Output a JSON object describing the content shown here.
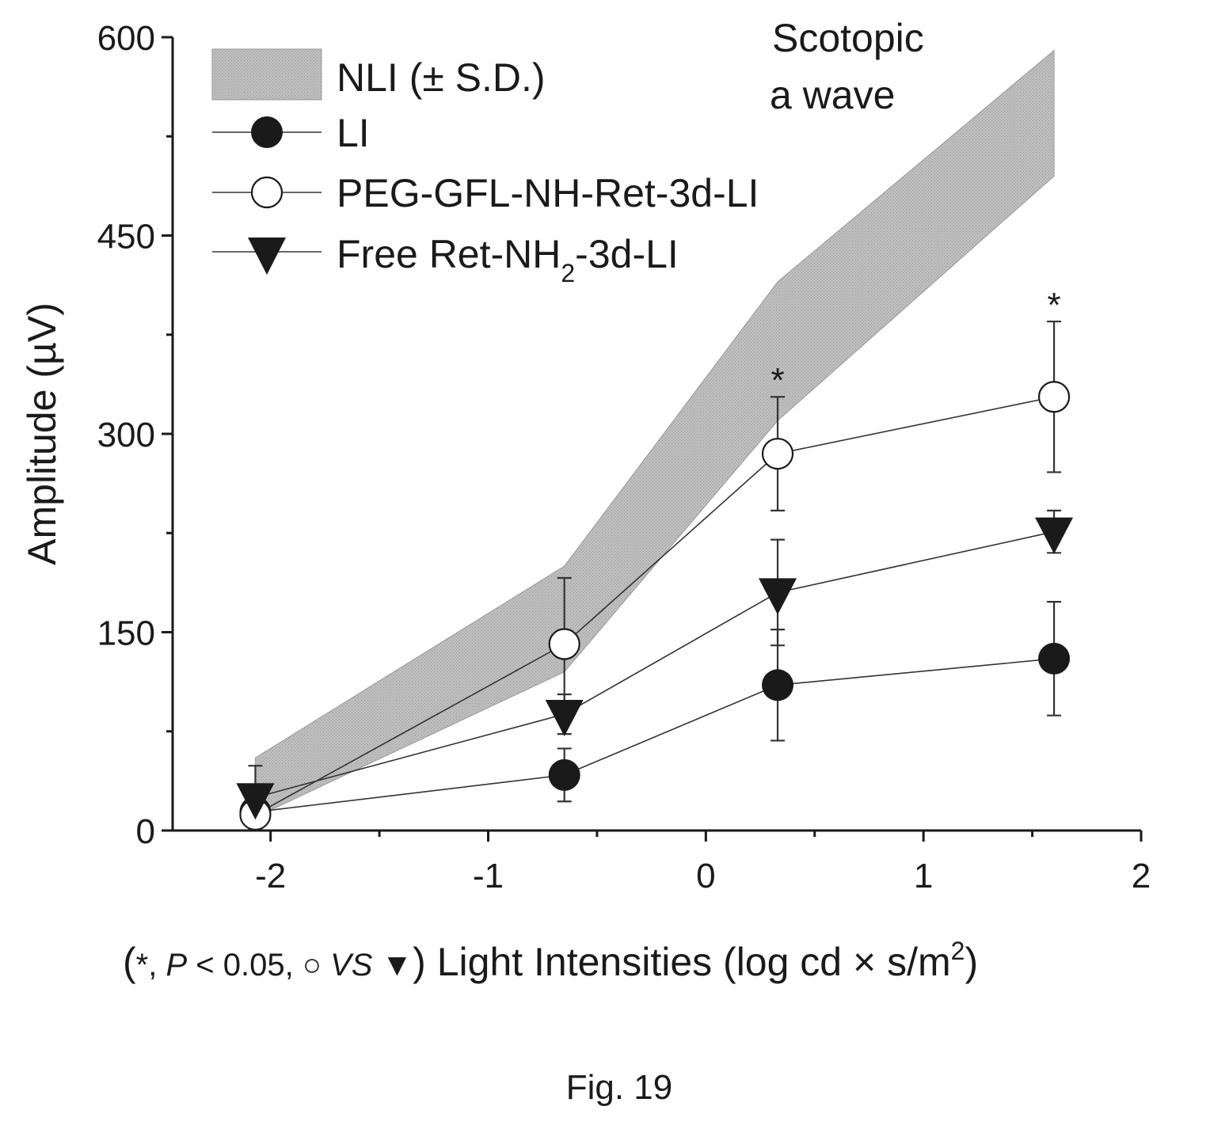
{
  "chart_data": {
    "type": "line",
    "annotation": [
      "Scotopic",
      "a wave"
    ],
    "ylabel_main": "Amplitude (",
    "ylabel_unit": "µV",
    "ylabel_close": ")",
    "xlabel_parts": {
      "open": "(",
      "star": "*, ",
      "p": "P",
      "p_rest": " < 0.05,  ",
      "open_circle": "○",
      "vs": " VS ",
      "triangle": "▼",
      "close_label": ") Light Intensities (log cd × s/m",
      "sup": "2",
      "end": ")"
    },
    "xlim": [
      -2.45,
      2.0
    ],
    "ylim": [
      0,
      600
    ],
    "xticks": [
      -2,
      -1,
      0,
      1,
      2
    ],
    "xtick_labels": [
      "-2",
      "-1",
      "0",
      "1",
      "2"
    ],
    "yticks": [
      0,
      150,
      300,
      450,
      600
    ],
    "ytick_labels": [
      "0",
      "150",
      "300",
      "450",
      "600"
    ],
    "band": {
      "name": "NLI (± S.D.)",
      "x": [
        -2.07,
        -0.65,
        0.33,
        1.6
      ],
      "lower": [
        10,
        120,
        310,
        495
      ],
      "upper": [
        55,
        200,
        415,
        590
      ],
      "color": "#b8b8b8"
    },
    "series": [
      {
        "name": "LI",
        "marker": "filled-circle",
        "color": "#1a1a1a",
        "x": [
          -2.07,
          -0.65,
          0.33,
          1.6
        ],
        "y": [
          14,
          42,
          110,
          130
        ],
        "err": [
          10,
          20,
          42,
          43
        ]
      },
      {
        "name": "PEG-GFL-NH-Ret-3d-LI",
        "marker": "open-circle",
        "color": "#1a1a1a",
        "x": [
          -2.07,
          -0.65,
          0.33,
          1.6
        ],
        "y": [
          12,
          141,
          285,
          328
        ],
        "err": [
          10,
          50,
          43,
          57
        ]
      },
      {
        "name_main": "Free Ret-NH",
        "name_sub": "2",
        "name_end": "-3d-LI",
        "marker": "filled-triangle-down",
        "color": "#1a1a1a",
        "x": [
          -2.07,
          -0.65,
          0.33,
          1.6
        ],
        "y": [
          25,
          88,
          180,
          226
        ],
        "err": [
          24,
          15,
          40,
          16
        ]
      }
    ],
    "significance": [
      {
        "x": 0.33,
        "label": "*"
      },
      {
        "x": 1.6,
        "label": "*"
      }
    ]
  },
  "figure_caption": "Fig. 19"
}
